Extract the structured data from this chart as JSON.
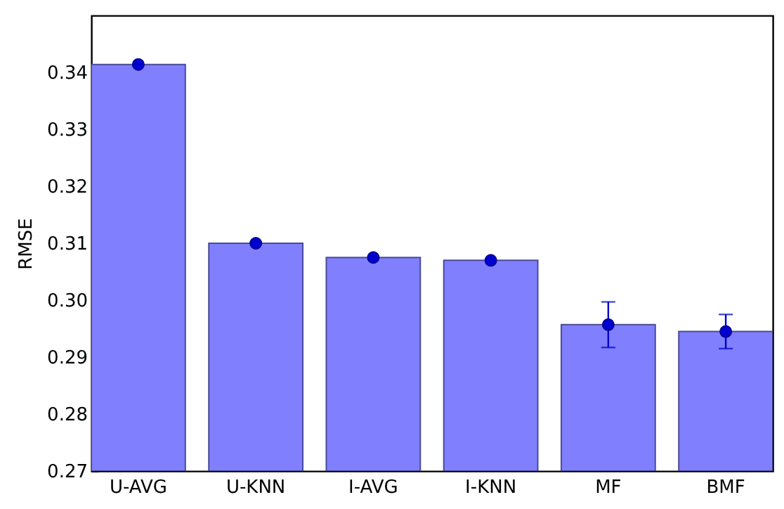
{
  "chart_data": {
    "type": "bar",
    "ylabel": "RMSE",
    "categories": [
      "U-AVG",
      "U-KNN",
      "I-AVG",
      "I-KNN",
      "MF",
      "BMF"
    ],
    "series": [
      {
        "color": "#8080ff",
        "values": [
          0.3414,
          0.31,
          0.3075,
          0.307,
          0.2957,
          0.2945
        ]
      },
      {
        "type": "scatter",
        "color": "#0000cc",
        "x": [
          "U-AVG",
          "U-KNN",
          "I-AVG",
          "I-KNN",
          "MF",
          "BMF"
        ],
        "values": [
          0.3414,
          0.31,
          0.3075,
          0.307,
          0.2957,
          0.2945
        ],
        "errors": [
          null,
          null,
          null,
          null,
          0.004,
          0.003
        ]
      }
    ],
    "ylim": [
      0.27,
      0.35
    ],
    "yticks": [
      0.27,
      0.28,
      0.29,
      {
        "value": 0.3,
        "label": "0.30"
      },
      0.31,
      0.32,
      0.33,
      0.34
    ],
    "marker": "circle",
    "grid": false
  }
}
